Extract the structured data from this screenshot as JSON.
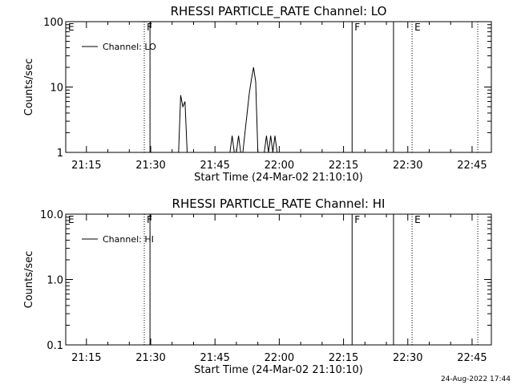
{
  "footer_timestamp": "24-Aug-2022 17:44",
  "chart_data": [
    {
      "type": "line",
      "title": "RHESSI PARTICLE_RATE Channel: LO",
      "xlabel": "Start Time (24-Mar-02 21:10:10)",
      "ylabel": "Counts/sec",
      "yscale": "log",
      "ylim": [
        1,
        100
      ],
      "y_ticks": [
        "1",
        "10",
        "100"
      ],
      "x_ticks": [
        "21:15",
        "21:30",
        "21:45",
        "22:00",
        "22:15",
        "22:30",
        "22:45"
      ],
      "legend": {
        "position": "top-left",
        "entries": [
          "Channel: LO"
        ]
      },
      "series": [
        {
          "name": "Channel: LO",
          "x": [
            "21:36:30",
            "21:37:00",
            "21:37:30",
            "21:38:00",
            "21:38:30",
            "21:39:00",
            "21:39:30",
            "21:48:30",
            "21:49:00",
            "21:49:30",
            "21:50:00",
            "21:50:30",
            "21:51:00",
            "21:51:30",
            "21:52:00",
            "21:52:30",
            "21:53:00",
            "21:53:30",
            "21:54:00",
            "21:54:30",
            "21:55:00",
            "21:55:30",
            "21:56:00",
            "21:56:30",
            "21:56:30",
            "21:57:00",
            "21:57:30",
            "21:58:00",
            "21:58:30",
            "21:59:00",
            "21:59:30",
            "22:00:00"
          ],
          "values": [
            1,
            7.5,
            5,
            6,
            1,
            1,
            1,
            1,
            1.8,
            1,
            1,
            1.8,
            1,
            1,
            2,
            4,
            8,
            13,
            20,
            12,
            1,
            1,
            1,
            1,
            1,
            1.8,
            1,
            1.8,
            1,
            1.8,
            1,
            1
          ]
        }
      ],
      "markers": [
        {
          "label": "E",
          "time": "21:10:10",
          "style": "dotted"
        },
        {
          "label": "F",
          "time": "21:28:30",
          "style": "dotted"
        },
        {
          "label": "",
          "time": "21:29:50",
          "style": "solid"
        },
        {
          "label": "F",
          "time": "22:17:00",
          "style": "solid"
        },
        {
          "label": "",
          "time": "22:26:40",
          "style": "solid"
        },
        {
          "label": "E",
          "time": "22:31:00",
          "style": "dotted"
        },
        {
          "label": "",
          "time": "22:46:20",
          "style": "dotted"
        }
      ]
    },
    {
      "type": "line",
      "title": "RHESSI PARTICLE_RATE Channel: HI",
      "xlabel": "Start Time (24-Mar-02 21:10:10)",
      "ylabel": "Counts/sec",
      "yscale": "log",
      "ylim": [
        0.1,
        10
      ],
      "y_ticks": [
        "0.1",
        "1.0",
        "10.0"
      ],
      "x_ticks": [
        "21:15",
        "21:30",
        "21:45",
        "22:00",
        "22:15",
        "22:30",
        "22:45"
      ],
      "legend": {
        "position": "top-left",
        "entries": [
          "Channel: HI"
        ]
      },
      "series": [
        {
          "name": "Channel: HI",
          "x": [],
          "values": []
        }
      ],
      "markers": [
        {
          "label": "E",
          "time": "21:10:10",
          "style": "dotted"
        },
        {
          "label": "F",
          "time": "21:28:30",
          "style": "dotted"
        },
        {
          "label": "",
          "time": "21:29:50",
          "style": "solid"
        },
        {
          "label": "F",
          "time": "22:17:00",
          "style": "solid"
        },
        {
          "label": "",
          "time": "22:26:40",
          "style": "solid"
        },
        {
          "label": "E",
          "time": "22:31:00",
          "style": "dotted"
        },
        {
          "label": "",
          "time": "22:46:20",
          "style": "dotted"
        }
      ]
    }
  ]
}
